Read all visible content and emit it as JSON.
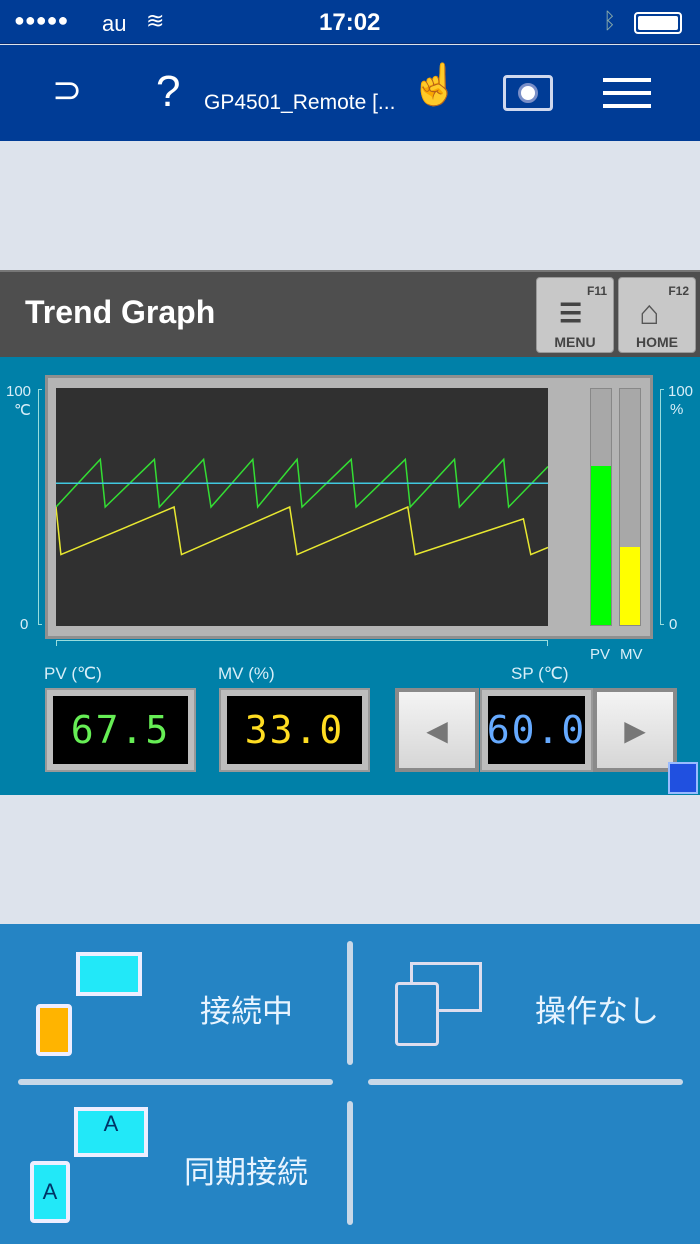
{
  "status_bar": {
    "signal": "●●●●●",
    "carrier": "au",
    "time": "17:02"
  },
  "nav": {
    "title": "GP4501_Remote [..."
  },
  "screen": {
    "title": "Trend Graph",
    "menu_button": {
      "fkey": "F11",
      "label": "MENU"
    },
    "home_button": {
      "fkey": "F12",
      "label": "HOME"
    },
    "left_axis": {
      "max": "100",
      "unit": "℃",
      "min": "0"
    },
    "right_axis": {
      "max": "100",
      "unit": "%",
      "min": "0"
    },
    "bar_labels": {
      "pv": "PV",
      "mv": "MV"
    },
    "pv": {
      "label": "PV (℃)",
      "value": "67.5"
    },
    "mv": {
      "label": "MV (%)",
      "value": "33.0"
    },
    "sp": {
      "label": "SP (℃)",
      "value": "60.0"
    },
    "colors": {
      "pv": "#33dd33",
      "mv": "#e8e830",
      "sp": "#40c8e0"
    }
  },
  "chart_data": {
    "type": "line",
    "ylim": [
      0,
      100
    ],
    "xlim": [
      0,
      100
    ],
    "series": [
      {
        "name": "PV",
        "x": [
          0,
          9,
          10,
          20,
          21,
          30,
          31.5,
          40,
          41,
          49,
          50,
          60,
          61,
          71,
          72,
          81,
          82,
          91,
          92,
          100
        ],
        "y": [
          50,
          70,
          50,
          70,
          50,
          70,
          50,
          70,
          50,
          70,
          50,
          70,
          50,
          70,
          50,
          70,
          50,
          70,
          50,
          67
        ]
      },
      {
        "name": "MV",
        "x": [
          0,
          1,
          24,
          25.5,
          47.5,
          49,
          71.5,
          73,
          95,
          96.5,
          100
        ],
        "y": [
          50,
          30,
          50,
          30,
          50,
          30,
          50,
          30,
          45,
          30,
          33
        ]
      },
      {
        "name": "SP",
        "x": [
          0,
          100
        ],
        "y": [
          60,
          60
        ]
      }
    ],
    "bars": {
      "PV": 67.5,
      "MV": 33
    }
  },
  "bottom": {
    "connected": "接続中",
    "no_operation": "操作なし",
    "sync": "同期接続"
  }
}
